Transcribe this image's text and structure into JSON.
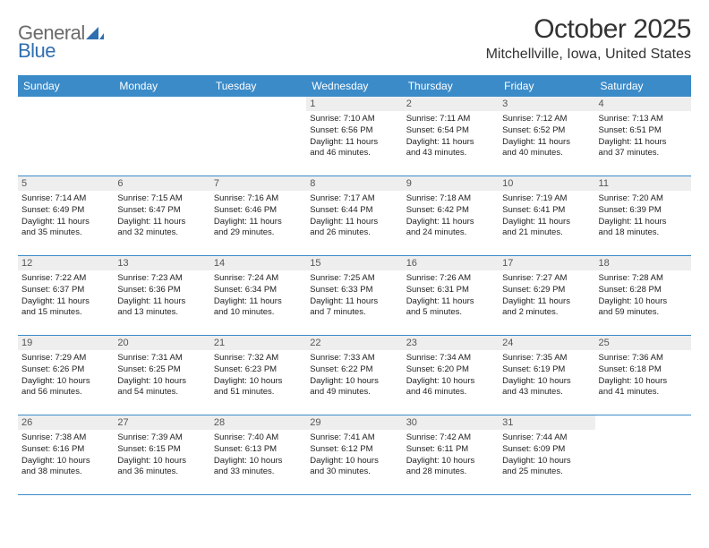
{
  "logo": {
    "text1": "General",
    "text2": "Blue"
  },
  "title": "October 2025",
  "subtitle": "Mitchellville, Iowa, United States",
  "colors": {
    "header_bg": "#3b8bc9",
    "header_fg": "#ffffff",
    "daynum_bg": "#eeeeee",
    "row_border": "#3b8bc9",
    "logo_gray": "#6a6a6a",
    "logo_blue": "#2f6fb0"
  },
  "dayNames": [
    "Sunday",
    "Monday",
    "Tuesday",
    "Wednesday",
    "Thursday",
    "Friday",
    "Saturday"
  ],
  "weeks": [
    [
      null,
      null,
      null,
      {
        "n": "1",
        "sr": "7:10 AM",
        "ss": "6:56 PM",
        "dh": "11",
        "dm": "46"
      },
      {
        "n": "2",
        "sr": "7:11 AM",
        "ss": "6:54 PM",
        "dh": "11",
        "dm": "43"
      },
      {
        "n": "3",
        "sr": "7:12 AM",
        "ss": "6:52 PM",
        "dh": "11",
        "dm": "40"
      },
      {
        "n": "4",
        "sr": "7:13 AM",
        "ss": "6:51 PM",
        "dh": "11",
        "dm": "37"
      }
    ],
    [
      {
        "n": "5",
        "sr": "7:14 AM",
        "ss": "6:49 PM",
        "dh": "11",
        "dm": "35"
      },
      {
        "n": "6",
        "sr": "7:15 AM",
        "ss": "6:47 PM",
        "dh": "11",
        "dm": "32"
      },
      {
        "n": "7",
        "sr": "7:16 AM",
        "ss": "6:46 PM",
        "dh": "11",
        "dm": "29"
      },
      {
        "n": "8",
        "sr": "7:17 AM",
        "ss": "6:44 PM",
        "dh": "11",
        "dm": "26"
      },
      {
        "n": "9",
        "sr": "7:18 AM",
        "ss": "6:42 PM",
        "dh": "11",
        "dm": "24"
      },
      {
        "n": "10",
        "sr": "7:19 AM",
        "ss": "6:41 PM",
        "dh": "11",
        "dm": "21"
      },
      {
        "n": "11",
        "sr": "7:20 AM",
        "ss": "6:39 PM",
        "dh": "11",
        "dm": "18"
      }
    ],
    [
      {
        "n": "12",
        "sr": "7:22 AM",
        "ss": "6:37 PM",
        "dh": "11",
        "dm": "15"
      },
      {
        "n": "13",
        "sr": "7:23 AM",
        "ss": "6:36 PM",
        "dh": "11",
        "dm": "13"
      },
      {
        "n": "14",
        "sr": "7:24 AM",
        "ss": "6:34 PM",
        "dh": "11",
        "dm": "10"
      },
      {
        "n": "15",
        "sr": "7:25 AM",
        "ss": "6:33 PM",
        "dh": "11",
        "dm": "7"
      },
      {
        "n": "16",
        "sr": "7:26 AM",
        "ss": "6:31 PM",
        "dh": "11",
        "dm": "5"
      },
      {
        "n": "17",
        "sr": "7:27 AM",
        "ss": "6:29 PM",
        "dh": "11",
        "dm": "2"
      },
      {
        "n": "18",
        "sr": "7:28 AM",
        "ss": "6:28 PM",
        "dh": "10",
        "dm": "59"
      }
    ],
    [
      {
        "n": "19",
        "sr": "7:29 AM",
        "ss": "6:26 PM",
        "dh": "10",
        "dm": "56"
      },
      {
        "n": "20",
        "sr": "7:31 AM",
        "ss": "6:25 PM",
        "dh": "10",
        "dm": "54"
      },
      {
        "n": "21",
        "sr": "7:32 AM",
        "ss": "6:23 PM",
        "dh": "10",
        "dm": "51"
      },
      {
        "n": "22",
        "sr": "7:33 AM",
        "ss": "6:22 PM",
        "dh": "10",
        "dm": "49"
      },
      {
        "n": "23",
        "sr": "7:34 AM",
        "ss": "6:20 PM",
        "dh": "10",
        "dm": "46"
      },
      {
        "n": "24",
        "sr": "7:35 AM",
        "ss": "6:19 PM",
        "dh": "10",
        "dm": "43"
      },
      {
        "n": "25",
        "sr": "7:36 AM",
        "ss": "6:18 PM",
        "dh": "10",
        "dm": "41"
      }
    ],
    [
      {
        "n": "26",
        "sr": "7:38 AM",
        "ss": "6:16 PM",
        "dh": "10",
        "dm": "38"
      },
      {
        "n": "27",
        "sr": "7:39 AM",
        "ss": "6:15 PM",
        "dh": "10",
        "dm": "36"
      },
      {
        "n": "28",
        "sr": "7:40 AM",
        "ss": "6:13 PM",
        "dh": "10",
        "dm": "33"
      },
      {
        "n": "29",
        "sr": "7:41 AM",
        "ss": "6:12 PM",
        "dh": "10",
        "dm": "30"
      },
      {
        "n": "30",
        "sr": "7:42 AM",
        "ss": "6:11 PM",
        "dh": "10",
        "dm": "28"
      },
      {
        "n": "31",
        "sr": "7:44 AM",
        "ss": "6:09 PM",
        "dh": "10",
        "dm": "25"
      },
      null
    ]
  ]
}
